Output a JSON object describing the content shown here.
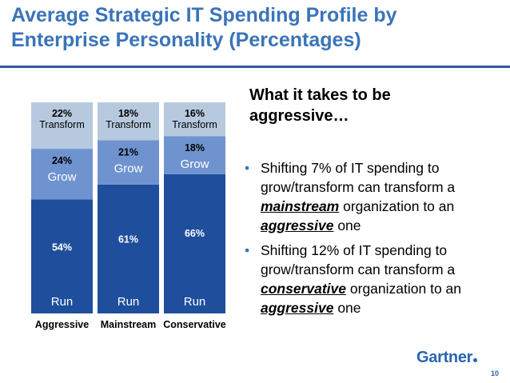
{
  "title": "Average Strategic IT Spending Profile by Enterprise Personality (Percentages)",
  "right": {
    "heading": "What it takes to be aggressive…",
    "bullet1": {
      "dot": "•",
      "pre": "Shifting 7% of IT spending to grow/transform can transform a ",
      "em": "mainstream",
      "mid": " organization to an ",
      "em2": "aggressive",
      "post": " one"
    },
    "bullet2": {
      "dot": "•",
      "pre": "Shifting 12% of IT spending to grow/transform can transform a ",
      "em": "conservative",
      "mid": " organization to an ",
      "em2": "aggressive",
      "post": " one"
    }
  },
  "logo": "Gartner",
  "page_number": "10",
  "colors": {
    "title": "#3a74b8",
    "run": "#1f4e9c",
    "grow": "#6f93cf",
    "transform": "#b7c9de"
  },
  "chart_data": {
    "type": "bar",
    "stacked": true,
    "categories": [
      "Aggressive",
      "Mainstream",
      "Conservative"
    ],
    "series": [
      {
        "name": "Run",
        "values": [
          54,
          61,
          66
        ],
        "labels": [
          "54%",
          "61%",
          "66%"
        ]
      },
      {
        "name": "Grow",
        "values": [
          24,
          21,
          18
        ],
        "labels": [
          "24%",
          "21%",
          "18%"
        ]
      },
      {
        "name": "Transform",
        "values": [
          22,
          18,
          16
        ],
        "labels": [
          "22%",
          "18%",
          "16%"
        ]
      }
    ],
    "ylim": [
      0,
      100
    ]
  }
}
